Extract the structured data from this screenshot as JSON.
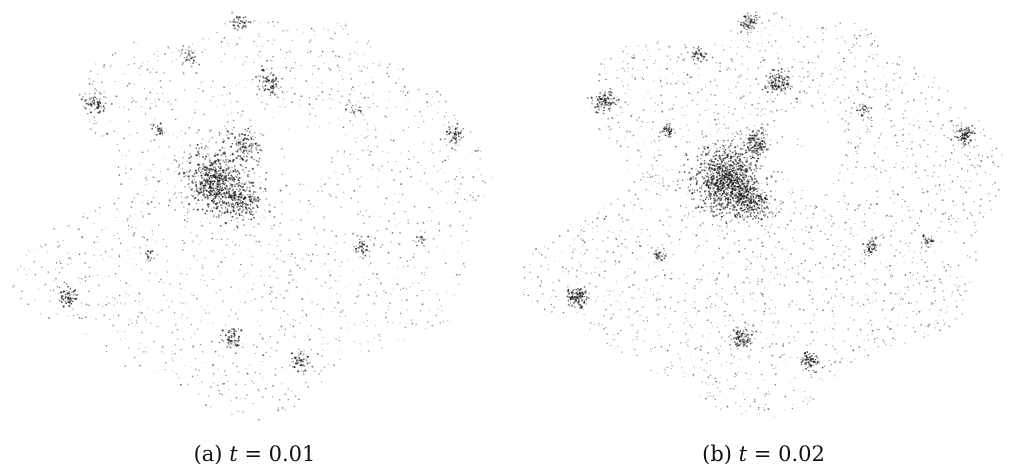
{
  "panels": [
    {
      "id": "a",
      "caption": {
        "tag": "(a)",
        "variable": "t",
        "relation": "=",
        "value": "0.01"
      }
    },
    {
      "id": "b",
      "caption": {
        "tag": "(b)",
        "variable": "t",
        "relation": "=",
        "value": "0.02"
      }
    }
  ],
  "colors": {
    "background": "#ffffff",
    "dots": "#1a1a1a"
  }
}
